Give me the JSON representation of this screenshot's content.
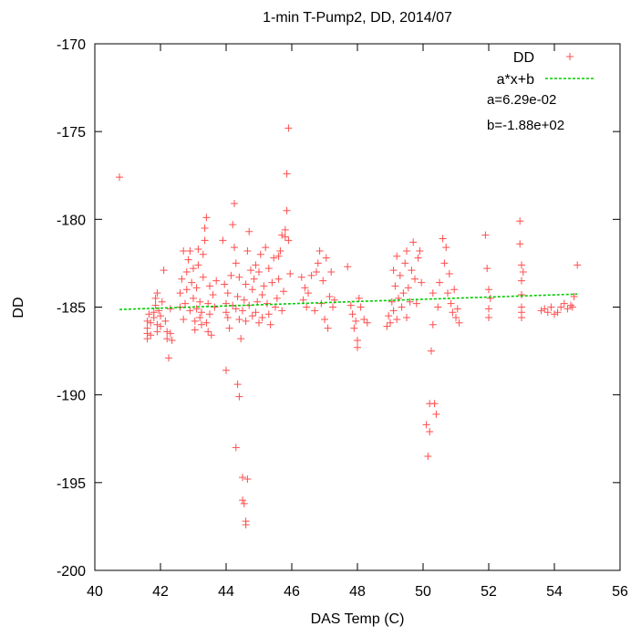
{
  "chart_data": {
    "type": "scatter",
    "title": "1-min T-Pump2, DD, 2014/07",
    "xlabel": "DAS Temp (C)",
    "ylabel": "DD",
    "xlim": [
      40,
      56
    ],
    "ylim": [
      -200,
      -170
    ],
    "xticks": [
      40,
      42,
      44,
      46,
      48,
      50,
      52,
      54,
      56
    ],
    "yticks": [
      -200,
      -195,
      -190,
      -185,
      -180,
      -175,
      -170
    ],
    "grid": false,
    "legend_position": "top-right",
    "colors": {
      "points": "#ff4d4d",
      "fit": "#00cc00"
    },
    "series": [
      {
        "name": "DD",
        "marker": "plus",
        "points": [
          [
            40.75,
            -177.6
          ],
          [
            41.6,
            -186.8
          ],
          [
            41.6,
            -186.5
          ],
          [
            41.6,
            -186.2
          ],
          [
            41.6,
            -185.8
          ],
          [
            41.65,
            -185.4
          ],
          [
            41.7,
            -186.6
          ],
          [
            41.7,
            -185.9
          ],
          [
            41.8,
            -185.3
          ],
          [
            41.8,
            -185.6
          ],
          [
            41.85,
            -184.9
          ],
          [
            41.85,
            -184.5
          ],
          [
            41.9,
            -184.2
          ],
          [
            41.9,
            -186.0
          ],
          [
            41.9,
            -186.4
          ],
          [
            41.95,
            -185.2
          ],
          [
            42.0,
            -185.5
          ],
          [
            42.0,
            -186.1
          ],
          [
            42.05,
            -184.7
          ],
          [
            42.1,
            -182.9
          ],
          [
            42.15,
            -185.8
          ],
          [
            42.2,
            -186.4
          ],
          [
            42.2,
            -186.8
          ],
          [
            42.25,
            -187.9
          ],
          [
            42.3,
            -186.5
          ],
          [
            42.35,
            -186.9
          ],
          [
            42.3,
            -185.1
          ],
          [
            42.6,
            -185.0
          ],
          [
            42.6,
            -184.2
          ],
          [
            42.65,
            -183.4
          ],
          [
            42.7,
            -181.8
          ],
          [
            42.7,
            -185.7
          ],
          [
            42.75,
            -184.8
          ],
          [
            42.8,
            -184.0
          ],
          [
            42.8,
            -183.0
          ],
          [
            42.85,
            -182.3
          ],
          [
            42.9,
            -181.8
          ],
          [
            42.9,
            -185.2
          ],
          [
            42.95,
            -183.6
          ],
          [
            43.0,
            -182.8
          ],
          [
            43.0,
            -184.5
          ],
          [
            43.05,
            -185.8
          ],
          [
            43.05,
            -186.3
          ],
          [
            43.1,
            -185.1
          ],
          [
            43.1,
            -183.9
          ],
          [
            43.15,
            -182.6
          ],
          [
            43.15,
            -181.7
          ],
          [
            43.2,
            -185.6
          ],
          [
            43.2,
            -184.7
          ],
          [
            43.25,
            -186.0
          ],
          [
            43.25,
            -185.3
          ],
          [
            43.3,
            -183.3
          ],
          [
            43.3,
            -182.0
          ],
          [
            43.35,
            -181.2
          ],
          [
            43.35,
            -180.5
          ],
          [
            43.4,
            -179.9
          ],
          [
            43.4,
            -185.9
          ],
          [
            43.45,
            -184.8
          ],
          [
            43.45,
            -186.4
          ],
          [
            43.5,
            -185.4
          ],
          [
            43.5,
            -183.8
          ],
          [
            43.55,
            -186.6
          ],
          [
            43.6,
            -184.3
          ],
          [
            43.65,
            -185.0
          ],
          [
            43.7,
            -183.5
          ],
          [
            43.9,
            -181.2
          ],
          [
            43.95,
            -183.7
          ],
          [
            44.0,
            -184.8
          ],
          [
            44.0,
            -185.3
          ],
          [
            44.0,
            -188.6
          ],
          [
            44.05,
            -184.2
          ],
          [
            44.05,
            -185.6
          ],
          [
            44.1,
            -186.2
          ],
          [
            44.15,
            -183.2
          ],
          [
            44.2,
            -180.3
          ],
          [
            44.2,
            -184.9
          ],
          [
            44.25,
            -179.1
          ],
          [
            44.25,
            -181.6
          ],
          [
            44.3,
            -182.5
          ],
          [
            44.3,
            -185.1
          ],
          [
            44.3,
            -193.0
          ],
          [
            44.35,
            -189.4
          ],
          [
            44.35,
            -184.4
          ],
          [
            44.4,
            -183.3
          ],
          [
            44.4,
            -185.7
          ],
          [
            44.4,
            -190.1
          ],
          [
            44.45,
            -186.8
          ],
          [
            44.5,
            -194.7
          ],
          [
            44.5,
            -185.2
          ],
          [
            44.5,
            -196.0
          ],
          [
            44.55,
            -184.6
          ],
          [
            44.55,
            -196.2
          ],
          [
            44.6,
            -197.2
          ],
          [
            44.6,
            -197.4
          ],
          [
            44.6,
            -183.7
          ],
          [
            44.6,
            -185.8
          ],
          [
            44.65,
            -181.8
          ],
          [
            44.65,
            -194.8
          ],
          [
            44.7,
            -180.7
          ],
          [
            44.7,
            -184.9
          ],
          [
            44.75,
            -182.9
          ],
          [
            44.8,
            -185.5
          ],
          [
            44.8,
            -184.0
          ],
          [
            44.85,
            -183.4
          ],
          [
            44.9,
            -182.6
          ],
          [
            44.9,
            -185.3
          ],
          [
            44.95,
            -184.7
          ],
          [
            45.0,
            -185.9
          ],
          [
            45.0,
            -183.0
          ],
          [
            45.05,
            -182.0
          ],
          [
            45.1,
            -184.3
          ],
          [
            45.1,
            -185.6
          ],
          [
            45.15,
            -183.8
          ],
          [
            45.2,
            -181.6
          ],
          [
            45.25,
            -184.8
          ],
          [
            45.3,
            -185.4
          ],
          [
            45.3,
            -182.8
          ],
          [
            45.35,
            -186.0
          ],
          [
            45.4,
            -183.6
          ],
          [
            45.45,
            -182.2
          ],
          [
            45.5,
            -185.0
          ],
          [
            45.55,
            -184.5
          ],
          [
            45.6,
            -182.1
          ],
          [
            45.6,
            -183.4
          ],
          [
            45.65,
            -181.8
          ],
          [
            45.7,
            -185.2
          ],
          [
            45.7,
            -180.9
          ],
          [
            45.75,
            -184.1
          ],
          [
            45.8,
            -181.0
          ],
          [
            45.8,
            -180.6
          ],
          [
            45.85,
            -177.4
          ],
          [
            45.85,
            -179.5
          ],
          [
            45.9,
            -174.8
          ],
          [
            45.9,
            -181.2
          ],
          [
            45.95,
            -183.1
          ],
          [
            46.3,
            -183.3
          ],
          [
            46.35,
            -184.6
          ],
          [
            46.4,
            -183.9
          ],
          [
            46.45,
            -185.0
          ],
          [
            46.5,
            -184.2
          ],
          [
            46.6,
            -183.2
          ],
          [
            46.7,
            -185.2
          ],
          [
            46.75,
            -183.0
          ],
          [
            46.8,
            -182.5
          ],
          [
            46.85,
            -181.8
          ],
          [
            46.9,
            -184.8
          ],
          [
            46.95,
            -183.5
          ],
          [
            47.0,
            -185.7
          ],
          [
            47.05,
            -182.2
          ],
          [
            47.1,
            -186.2
          ],
          [
            47.15,
            -184.4
          ],
          [
            47.2,
            -183.0
          ],
          [
            47.25,
            -185.0
          ],
          [
            47.3,
            -184.6
          ],
          [
            47.7,
            -182.7
          ],
          [
            47.8,
            -184.9
          ],
          [
            47.85,
            -185.4
          ],
          [
            47.9,
            -186.2
          ],
          [
            47.95,
            -185.8
          ],
          [
            48.0,
            -186.9
          ],
          [
            48.0,
            -187.3
          ],
          [
            48.05,
            -184.5
          ],
          [
            48.1,
            -185.0
          ],
          [
            48.2,
            -185.7
          ],
          [
            48.3,
            -185.9
          ],
          [
            48.9,
            -186.1
          ],
          [
            48.95,
            -185.5
          ],
          [
            49.0,
            -185.9
          ],
          [
            49.05,
            -184.7
          ],
          [
            49.1,
            -182.9
          ],
          [
            49.1,
            -185.2
          ],
          [
            49.15,
            -183.8
          ],
          [
            49.2,
            -182.1
          ],
          [
            49.2,
            -185.7
          ],
          [
            49.25,
            -184.5
          ],
          [
            49.3,
            -183.2
          ],
          [
            49.35,
            -185.0
          ],
          [
            49.4,
            -184.2
          ],
          [
            49.45,
            -182.5
          ],
          [
            49.5,
            -185.6
          ],
          [
            49.5,
            -181.8
          ],
          [
            49.55,
            -183.9
          ],
          [
            49.6,
            -184.7
          ],
          [
            49.65,
            -182.9
          ],
          [
            49.7,
            -181.3
          ],
          [
            49.75,
            -183.4
          ],
          [
            49.8,
            -184.8
          ],
          [
            49.85,
            -182.2
          ],
          [
            49.9,
            -181.8
          ],
          [
            49.95,
            -183.6
          ],
          [
            50.1,
            -191.7
          ],
          [
            50.15,
            -193.5
          ],
          [
            50.2,
            -192.1
          ],
          [
            50.2,
            -190.5
          ],
          [
            50.25,
            -187.5
          ],
          [
            50.3,
            -186.0
          ],
          [
            50.3,
            -184.2
          ],
          [
            50.35,
            -190.5
          ],
          [
            50.4,
            -191.1
          ],
          [
            50.45,
            -185.0
          ],
          [
            50.5,
            -183.6
          ],
          [
            50.6,
            -181.1
          ],
          [
            50.65,
            -182.5
          ],
          [
            50.7,
            -181.6
          ],
          [
            50.75,
            -184.2
          ],
          [
            50.8,
            -183.1
          ],
          [
            50.85,
            -184.8
          ],
          [
            50.9,
            -185.3
          ],
          [
            50.95,
            -184.0
          ],
          [
            51.0,
            -185.6
          ],
          [
            51.05,
            -185.1
          ],
          [
            51.1,
            -185.9
          ],
          [
            51.9,
            -180.9
          ],
          [
            51.95,
            -182.8
          ],
          [
            52.0,
            -184.0
          ],
          [
            52.0,
            -185.1
          ],
          [
            52.05,
            -184.5
          ],
          [
            52.0,
            -185.6
          ],
          [
            52.95,
            -180.1
          ],
          [
            52.95,
            -181.4
          ],
          [
            53.0,
            -182.6
          ],
          [
            53.0,
            -183.5
          ],
          [
            53.0,
            -184.3
          ],
          [
            53.0,
            -185.0
          ],
          [
            53.0,
            -185.6
          ],
          [
            53.05,
            -183.0
          ],
          [
            53.0,
            -185.3
          ],
          [
            53.6,
            -185.2
          ],
          [
            53.7,
            -185.1
          ],
          [
            53.8,
            -185.3
          ],
          [
            53.9,
            -185.0
          ],
          [
            54.0,
            -185.4
          ],
          [
            54.1,
            -185.3
          ],
          [
            54.2,
            -185.0
          ],
          [
            54.3,
            -184.8
          ],
          [
            54.4,
            -185.1
          ],
          [
            54.5,
            -184.9
          ],
          [
            54.55,
            -185.0
          ],
          [
            54.6,
            -184.4
          ],
          [
            54.7,
            -182.6
          ]
        ]
      },
      {
        "name": "a*x+b",
        "type": "line",
        "style": "dashed",
        "a": 0.0629,
        "b": -187.7,
        "x_range": [
          40.75,
          54.7
        ]
      }
    ],
    "annotations": [
      "a=6.29e-02",
      "b=-1.88e+02"
    ]
  }
}
